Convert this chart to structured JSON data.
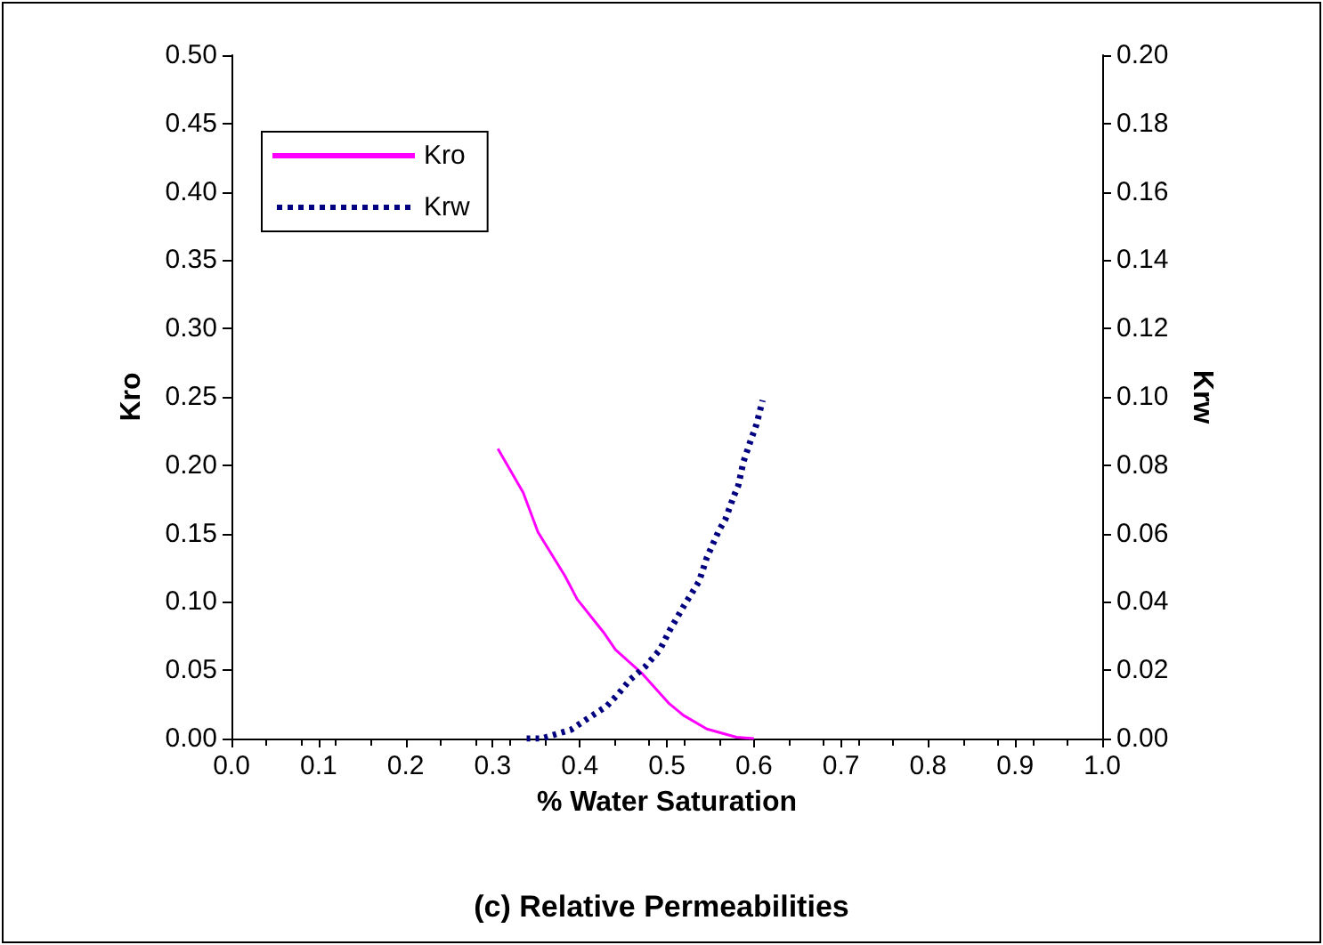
{
  "chart_data": {
    "type": "line",
    "title": "(c) Relative Permeabilities",
    "xlabel": "% Water Saturation",
    "ylabel": "Kro",
    "y2label": "Krw",
    "series": [
      {
        "name": "Kro",
        "color": "#ff00ff",
        "line_style": "solid",
        "x": [
          0.306,
          0.335,
          0.352,
          0.383,
          0.397,
          0.427,
          0.441,
          0.471,
          0.502,
          0.519,
          0.546,
          0.58,
          0.6
        ],
        "values": [
          0.212,
          0.18,
          0.151,
          0.119,
          0.102,
          0.078,
          0.065,
          0.048,
          0.026,
          0.017,
          0.007,
          0.001,
          0.0
        ]
      },
      {
        "name": "Krw",
        "color": "#000080",
        "line_style": "dotted",
        "axis": "y2",
        "x": [
          0.339,
          0.356,
          0.369,
          0.39,
          0.41,
          0.431,
          0.444,
          0.458,
          0.475,
          0.492,
          0.504,
          0.52,
          0.537,
          0.546,
          0.56,
          0.567,
          0.577,
          0.582,
          0.588,
          0.596,
          0.603,
          0.61
        ],
        "values": [
          0.0,
          0.0,
          0.001,
          0.0026,
          0.006,
          0.0095,
          0.013,
          0.0173,
          0.021,
          0.026,
          0.032,
          0.039,
          0.046,
          0.053,
          0.061,
          0.064,
          0.071,
          0.074,
          0.081,
          0.087,
          0.092,
          0.099
        ]
      }
    ],
    "xlim": [
      0,
      1
    ],
    "xticks": [
      {
        "value": 0,
        "label": "0.0"
      },
      {
        "value": 0.1,
        "label": "0.1"
      },
      {
        "value": 0.2,
        "label": "0.2"
      },
      {
        "value": 0.3,
        "label": "0.3"
      },
      {
        "value": 0.4,
        "label": "0.4"
      },
      {
        "value": 0.5,
        "label": "0.5"
      },
      {
        "value": 0.6,
        "label": "0.6"
      },
      {
        "value": 0.7,
        "label": "0.7"
      },
      {
        "value": 0.8,
        "label": "0.8"
      },
      {
        "value": 0.9,
        "label": "0.9"
      },
      {
        "value": 1,
        "label": "1.0"
      }
    ],
    "ylim": [
      0,
      0.5
    ],
    "yticks": [
      {
        "value": 0,
        "label": "0.00"
      },
      {
        "value": 0.05,
        "label": "0.05"
      },
      {
        "value": 0.1,
        "label": "0.10"
      },
      {
        "value": 0.15,
        "label": "0.15"
      },
      {
        "value": 0.2,
        "label": "0.20"
      },
      {
        "value": 0.25,
        "label": "0.25"
      },
      {
        "value": 0.3,
        "label": "0.30"
      },
      {
        "value": 0.35,
        "label": "0.35"
      },
      {
        "value": 0.4,
        "label": "0.40"
      },
      {
        "value": 0.45,
        "label": "0.45"
      },
      {
        "value": 0.5,
        "label": "0.50"
      }
    ],
    "y2lim": [
      0,
      0.2
    ],
    "y2ticks": [
      {
        "value": 0,
        "label": "0.00"
      },
      {
        "value": 0.02,
        "label": "0.02"
      },
      {
        "value": 0.04,
        "label": "0.04"
      },
      {
        "value": 0.06,
        "label": "0.06"
      },
      {
        "value": 0.08,
        "label": "0.08"
      },
      {
        "value": 0.1,
        "label": "0.10"
      },
      {
        "value": 0.12,
        "label": "0.12"
      },
      {
        "value": 0.14,
        "label": "0.14"
      },
      {
        "value": 0.16,
        "label": "0.16"
      },
      {
        "value": 0.18,
        "label": "0.18"
      },
      {
        "value": 0.2,
        "label": "0.20"
      }
    ],
    "grid": false,
    "legend": "top left",
    "marker": "none"
  }
}
